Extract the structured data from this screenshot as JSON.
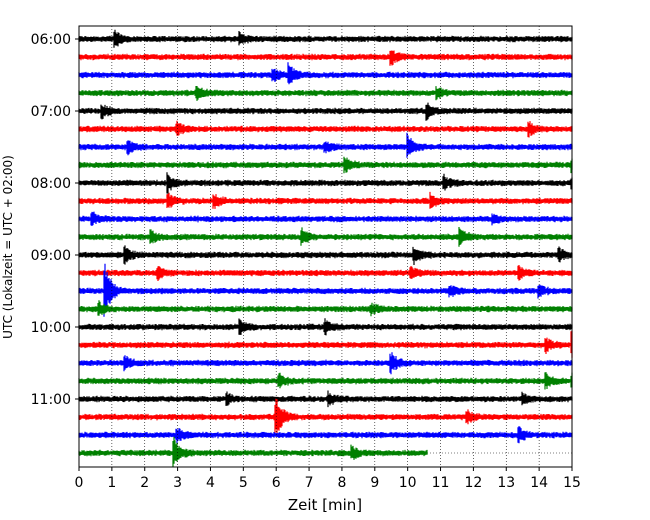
{
  "chart_data": {
    "type": "line",
    "title": "",
    "xlabel": "Zeit  [min]",
    "ylabel": "UTC (Lokalzeit = UTC + 02:00)",
    "xlim": [
      0,
      15
    ],
    "x_ticks": [
      0,
      1,
      2,
      3,
      4,
      5,
      6,
      7,
      8,
      9,
      10,
      11,
      12,
      13,
      14,
      15
    ],
    "y_ticks": [
      "06:00",
      "07:00",
      "08:00",
      "09:00",
      "10:00",
      "11:00"
    ],
    "trace_interval_min": 15,
    "grid": "vertical dotted at each minute, horizontal dotted at each trace",
    "series": [
      {
        "time": "06:00",
        "color": "#000000",
        "end_min": 15,
        "events": [
          [
            1.1,
            1.0
          ],
          [
            4.9,
            0.8
          ]
        ]
      },
      {
        "time": "06:15",
        "color": "#ff0000",
        "end_min": 15,
        "events": [
          [
            9.5,
            0.9
          ]
        ]
      },
      {
        "time": "06:30",
        "color": "#0000ff",
        "end_min": 15,
        "events": [
          [
            5.9,
            0.9
          ],
          [
            6.4,
            1.3
          ]
        ]
      },
      {
        "time": "06:45",
        "color": "#008000",
        "end_min": 15,
        "events": [
          [
            3.6,
            0.9
          ],
          [
            10.9,
            0.7
          ]
        ]
      },
      {
        "time": "07:00",
        "color": "#000000",
        "end_min": 15,
        "events": [
          [
            0.7,
            0.9
          ],
          [
            10.6,
            1.0
          ]
        ]
      },
      {
        "time": "07:15",
        "color": "#ff0000",
        "end_min": 15,
        "events": [
          [
            3.0,
            0.7
          ],
          [
            13.7,
            0.8
          ]
        ]
      },
      {
        "time": "07:30",
        "color": "#0000ff",
        "end_min": 15,
        "events": [
          [
            1.5,
            0.8
          ],
          [
            7.5,
            0.7
          ],
          [
            10.0,
            1.8
          ]
        ]
      },
      {
        "time": "07:45",
        "color": "#008000",
        "end_min": 15,
        "events": [
          [
            8.1,
            1.1
          ],
          [
            15.0,
            0.8
          ]
        ]
      },
      {
        "time": "08:00",
        "color": "#000000",
        "end_min": 15,
        "events": [
          [
            2.7,
            1.2
          ],
          [
            11.1,
            0.9
          ],
          [
            15.0,
            0.7
          ]
        ]
      },
      {
        "time": "08:15",
        "color": "#ff0000",
        "end_min": 15,
        "events": [
          [
            2.7,
            1.0
          ],
          [
            4.1,
            1.0
          ],
          [
            10.7,
            0.9
          ]
        ]
      },
      {
        "time": "08:30",
        "color": "#0000ff",
        "end_min": 15,
        "events": [
          [
            0.4,
            0.9
          ],
          [
            12.6,
            0.7
          ]
        ]
      },
      {
        "time": "08:45",
        "color": "#008000",
        "end_min": 15,
        "events": [
          [
            2.2,
            0.8
          ],
          [
            6.8,
            1.0
          ],
          [
            11.6,
            1.2
          ]
        ]
      },
      {
        "time": "09:00",
        "color": "#000000",
        "end_min": 15,
        "events": [
          [
            1.4,
            1.0
          ],
          [
            10.2,
            1.1
          ],
          [
            14.6,
            0.8
          ]
        ]
      },
      {
        "time": "09:15",
        "color": "#ff0000",
        "end_min": 15,
        "events": [
          [
            2.4,
            0.8
          ],
          [
            10.1,
            0.7
          ],
          [
            13.4,
            0.8
          ]
        ]
      },
      {
        "time": "09:30",
        "color": "#0000ff",
        "end_min": 15,
        "events": [
          [
            0.8,
            3.5
          ],
          [
            11.3,
            0.7
          ],
          [
            14.0,
            0.8
          ]
        ]
      },
      {
        "time": "09:45",
        "color": "#008000",
        "end_min": 15,
        "events": [
          [
            0.6,
            0.9
          ],
          [
            8.9,
            0.7
          ]
        ]
      },
      {
        "time": "10:00",
        "color": "#000000",
        "end_min": 15,
        "events": [
          [
            4.9,
            1.0
          ],
          [
            7.5,
            0.8
          ]
        ]
      },
      {
        "time": "10:15",
        "color": "#ff0000",
        "end_min": 15,
        "events": [
          [
            14.2,
            0.9
          ],
          [
            15.0,
            1.8
          ]
        ]
      },
      {
        "time": "10:30",
        "color": "#0000ff",
        "end_min": 15,
        "events": [
          [
            1.4,
            0.8
          ],
          [
            9.5,
            1.3
          ]
        ]
      },
      {
        "time": "10:45",
        "color": "#008000",
        "end_min": 15,
        "events": [
          [
            6.1,
            0.9
          ],
          [
            14.2,
            1.0
          ],
          [
            15.0,
            0.8
          ]
        ]
      },
      {
        "time": "11:00",
        "color": "#000000",
        "end_min": 15,
        "events": [
          [
            4.5,
            0.7
          ],
          [
            7.6,
            0.8
          ],
          [
            13.5,
            0.7
          ]
        ]
      },
      {
        "time": "11:15",
        "color": "#ff0000",
        "end_min": 15,
        "events": [
          [
            6.0,
            3.0
          ],
          [
            11.8,
            0.9
          ]
        ]
      },
      {
        "time": "11:30",
        "color": "#0000ff",
        "end_min": 15,
        "events": [
          [
            3.0,
            0.8
          ],
          [
            13.4,
            0.8
          ]
        ]
      },
      {
        "time": "11:45",
        "color": "#008000",
        "end_min": 10.6,
        "events": [
          [
            2.9,
            1.9
          ],
          [
            8.3,
            0.8
          ]
        ]
      }
    ]
  }
}
